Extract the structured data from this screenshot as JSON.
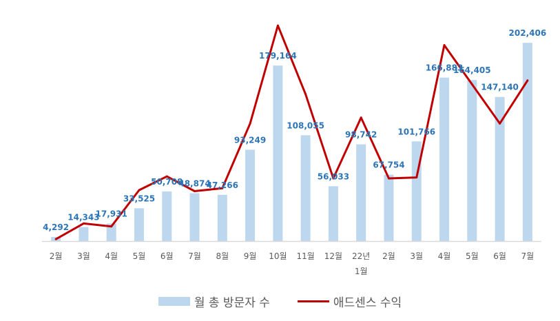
{
  "chart_data": {
    "type": "bar",
    "categories": [
      "2월",
      "3월",
      "4월",
      "5월",
      "6월",
      "7월",
      "8월",
      "9월",
      "10월",
      "11월",
      "12월",
      "22년",
      "2월",
      "3월",
      "4월",
      "5월",
      "6월",
      "7월"
    ],
    "category_sublabels": [
      "",
      "",
      "",
      "",
      "",
      "",
      "",
      "",
      "",
      "",
      "",
      "1월",
      "",
      "",
      "",
      "",
      "",
      ""
    ],
    "series": [
      {
        "name": "월 총 방문자 수",
        "type": "bar",
        "color": "#bdd7ee",
        "values": [
          4292,
          14343,
          17931,
          33525,
          50708,
          48874,
          47266,
          93249,
          179164,
          108055,
          56033,
          98742,
          67754,
          101766,
          166883,
          164405,
          147140,
          202406
        ],
        "labels": [
          "4,292",
          "14,343",
          "17,931",
          "33,525",
          "50,708",
          "48,874",
          "47,266",
          "93,249",
          "179,164",
          "108,055",
          "56,033",
          "98,742",
          "67,754",
          "101,766",
          "166,883",
          "164,405",
          "147,140",
          "202,406"
        ]
      },
      {
        "name": "애드센스 수익",
        "type": "line",
        "color": "#c00000",
        "values": [
          2,
          18,
          15,
          52,
          66,
          51,
          54,
          120,
          220,
          150,
          64,
          126,
          64,
          65,
          200,
          160,
          120,
          164
        ]
      }
    ],
    "ylim": [
      0,
      225000
    ],
    "y2lim": [
      0,
      225
    ],
    "label_color": "#2e75b6",
    "axis_color": "#d9d9d9",
    "tick_color": "#595959",
    "grid": false,
    "legend": "bottom"
  }
}
